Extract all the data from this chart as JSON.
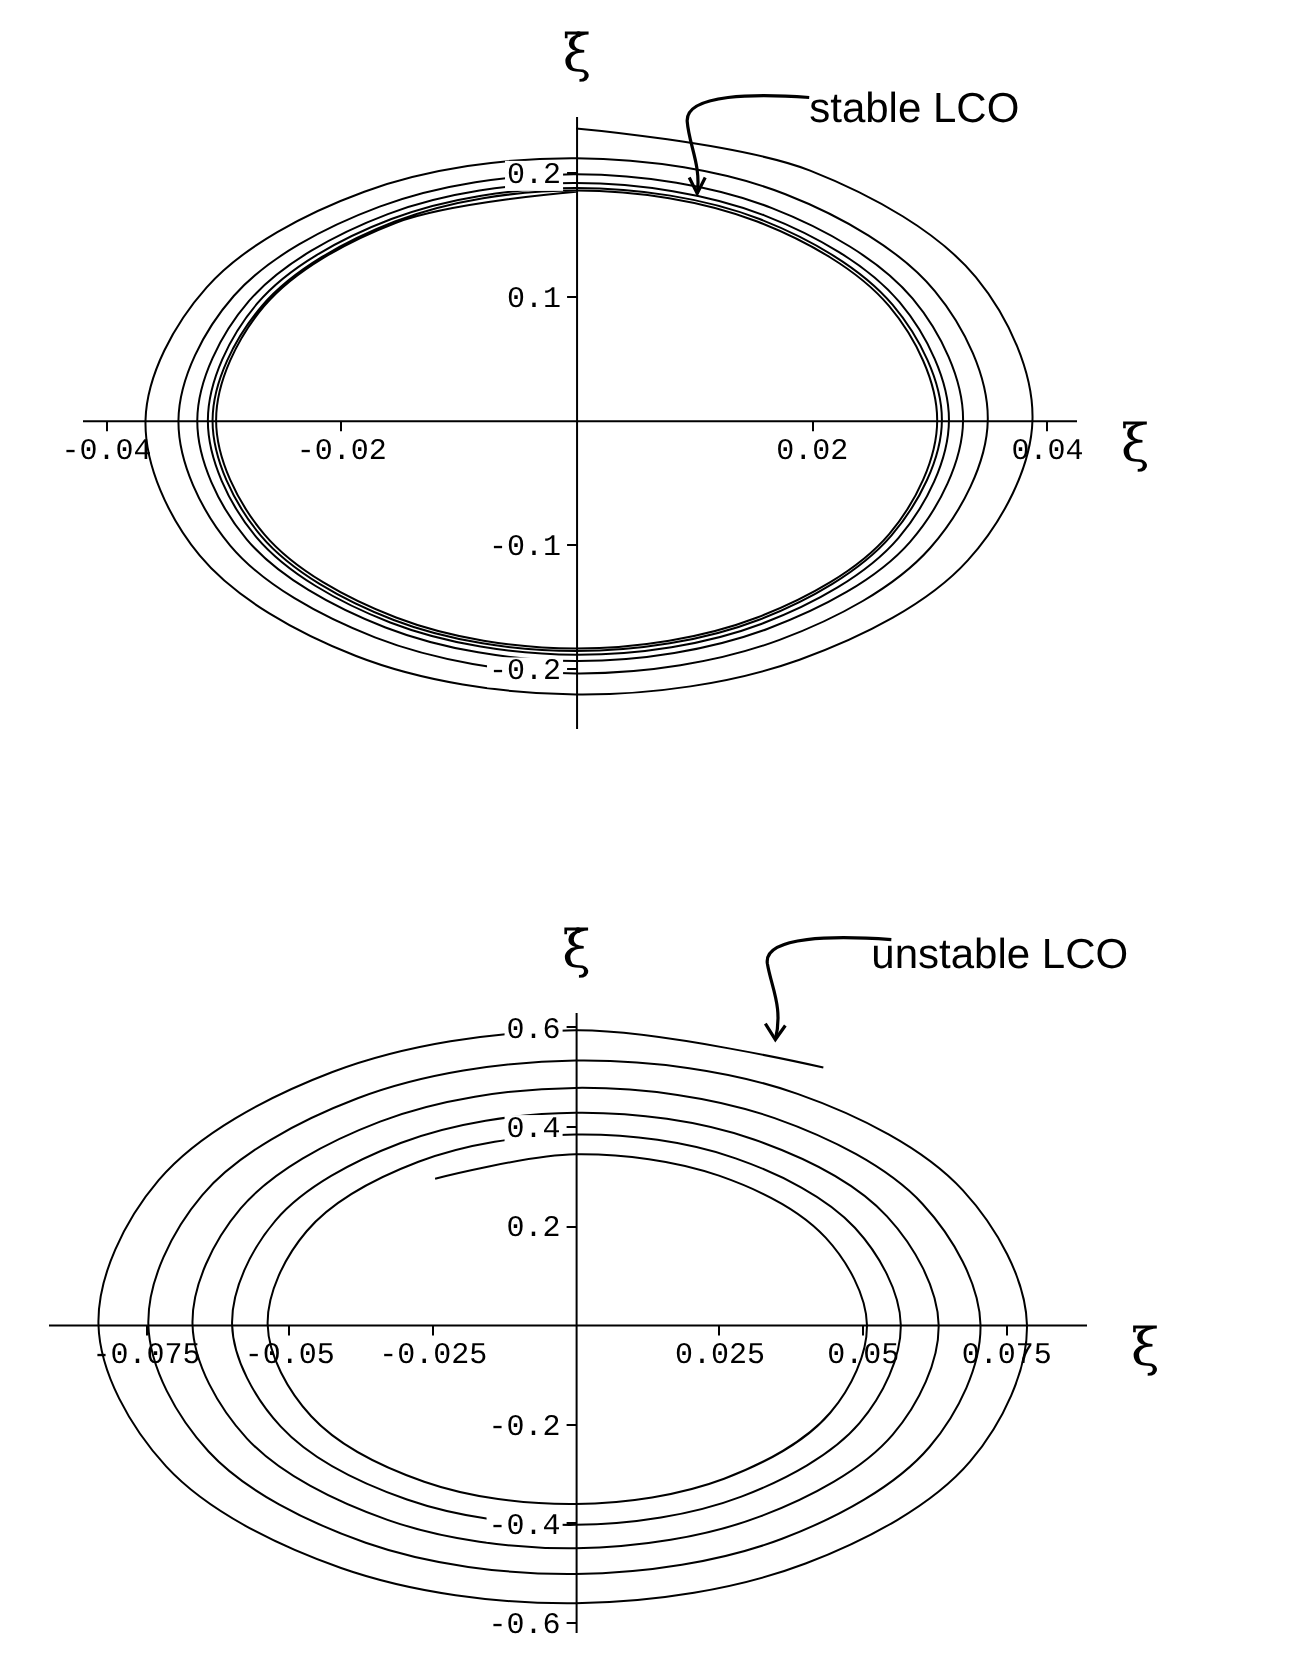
{
  "chart_data": [
    {
      "type": "line",
      "xlabel": "ξ",
      "ylabel": "ξ̇",
      "xlim": [
        -0.042,
        0.0425
      ],
      "ylim": [
        -0.248,
        0.245
      ],
      "xticks": [
        -0.04,
        -0.02,
        0.02,
        0.04
      ],
      "yticks": [
        -0.2,
        -0.1,
        0.1,
        0.2
      ],
      "annotations": [
        {
          "text": "stable LCO",
          "x": 0.0154,
          "y": 0.16
        }
      ],
      "series": [
        {
          "color": "#000000",
          "x": [
            0,
            0.0199,
            0.034,
            0.0388,
            0.0333,
            0.019,
            0,
            -0.0187,
            -0.032,
            -0.0366,
            -0.0314,
            -0.018,
            0,
            0.0178,
            0.0305,
            0.035,
            0.0301,
            0.0173,
            0,
            -0.0171,
            -0.0294,
            -0.0338,
            -0.0291,
            -0.0167,
            0,
            0.0166,
            0.0286,
            0.0329,
            0.0284,
            0.0163,
            0,
            -0.0162,
            -0.028,
            -0.0322,
            -0.0278,
            -0.016,
            0,
            0.016,
            0.0275,
            0.0317,
            0.0274,
            0.0158,
            0,
            -0.0158,
            -0.0272,
            -0.0313,
            -0.0271,
            -0.0157,
            0,
            0.0156,
            0.0269,
            0.0311,
            0.0268,
            0.0155,
            0,
            -0.0155,
            -0.0268,
            -0.0309,
            -0.0267,
            -0.0154,
            0,
            0.0154,
            0.0266,
            0.0307,
            0.0266,
            0.0154,
            0,
            -0.0153,
            -0.0265,
            -0.0306,
            -0.0265,
            -0.0153,
            0
          ],
          "values": [
            0.235,
            0.201,
            0.115,
            0,
            -0.113,
            -0.193,
            -0.221,
            -0.19,
            -0.109,
            0,
            0.107,
            0.184,
            0.211,
            0.182,
            0.104,
            0,
            -0.103,
            -0.177,
            -0.204,
            -0.175,
            -0.101,
            0,
            0.1,
            0.172,
            0.198,
            0.171,
            0.098,
            0,
            -0.098,
            -0.168,
            -0.194,
            -0.167,
            -0.096,
            0,
            0.096,
            0.166,
            0.191,
            0.165,
            0.095,
            0,
            -0.095,
            -0.164,
            -0.189,
            -0.163,
            -0.094,
            0,
            0.094,
            0.162,
            0.187,
            0.162,
            0.093,
            0,
            -0.093,
            -0.161,
            -0.186,
            -0.161,
            -0.093,
            0,
            0.092,
            0.16,
            0.185,
            0.16,
            0.092,
            0,
            -0.092,
            -0.159,
            -0.184,
            -0.159,
            -0.092,
            0,
            0.092,
            0.159,
            0.184
          ]
        }
      ]
    },
    {
      "type": "line",
      "xlabel": "ξ",
      "ylabel": "ξ̇",
      "xlim": [
        -0.092,
        0.089
      ],
      "ylim": [
        -0.62,
        0.63
      ],
      "xticks": [
        -0.075,
        -0.05,
        -0.025,
        0.025,
        0.05,
        0.075
      ],
      "yticks": [
        -0.6,
        -0.4,
        -0.2,
        0.2,
        0.4,
        0.6
      ],
      "annotations": [
        {
          "text": "unstable LCO",
          "x": 0.0432,
          "y": 0.518
        }
      ],
      "series": [
        {
          "color": "#000000",
          "x": [
            -0.0245,
            0,
            0.025,
            0.0436,
            0.0508,
            0.0444,
            0.0259,
            0,
            -0.0264,
            -0.0461,
            -0.0537,
            -0.0469,
            -0.0274,
            0,
            0.0279,
            0.0487,
            0.0567,
            0.0495,
            0.0289,
            0,
            -0.0294,
            -0.0514,
            -0.0599,
            -0.0523,
            -0.0305,
            0,
            0.0311,
            0.0543,
            0.0633,
            0.0553,
            0.0322,
            0,
            -0.0328,
            -0.0573,
            -0.0668,
            -0.0584,
            -0.0341,
            0,
            0.0347,
            0.0605,
            0.0706,
            0.0617,
            0.036,
            0,
            -0.0366,
            -0.064,
            -0.0745,
            -0.0651,
            -0.038,
            0,
            0.0387,
            0.0675,
            0.0787,
            0.0688,
            0.0401,
            0,
            -0.0409,
            -0.0714,
            -0.0832,
            -0.0727,
            -0.0424,
            0,
            0.0432
          ],
          "values": [
            0.294,
            0.343,
            0.3,
            0.175,
            0,
            -0.178,
            -0.311,
            -0.362,
            -0.317,
            -0.185,
            0,
            0.188,
            0.328,
            0.383,
            0.335,
            0.195,
            0,
            -0.199,
            -0.347,
            -0.404,
            -0.353,
            -0.206,
            0,
            0.21,
            0.366,
            0.427,
            0.373,
            0.218,
            0,
            -0.222,
            -0.387,
            -0.451,
            -0.394,
            -0.23,
            0,
            0.234,
            0.409,
            0.477,
            0.416,
            0.243,
            0,
            -0.247,
            -0.432,
            -0.503,
            -0.44,
            -0.256,
            0,
            0.261,
            0.456,
            0.532,
            0.465,
            0.271,
            0,
            -0.276,
            -0.482,
            -0.562,
            -0.491,
            -0.286,
            0,
            0.291,
            0.509,
            0.593,
            0.518
          ]
        }
      ]
    }
  ]
}
